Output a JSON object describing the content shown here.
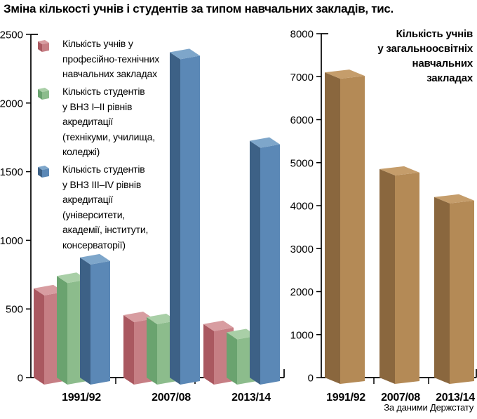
{
  "title": "Зміна кількості учнів і студентів за типом навчальних закладів, тис.",
  "source_note": "За даними Держстату",
  "palette": {
    "vocational": {
      "front": "#c67e84",
      "side": "#aa5860",
      "top": "#d89da1"
    },
    "college": {
      "front": "#8cbc8c",
      "side": "#6aa36f",
      "top": "#a9cfa7"
    },
    "university": {
      "front": "#5b88b6",
      "side": "#3d6186",
      "top": "#7ea6ca"
    },
    "school": {
      "front": "#b48a56",
      "side": "#8a673e",
      "top": "#c59d6b"
    }
  },
  "chart_data": [
    {
      "type": "bar",
      "axis_slot": "left",
      "title": "",
      "unit": "тис.",
      "categories": [
        "1991/92",
        "2007/08",
        "2013/14"
      ],
      "series": [
        {
          "name": "Кількість учнів у професійно-технічних навчальних закладах",
          "palette": "vocational",
          "values": [
            650,
            455,
            390
          ]
        },
        {
          "name": "Кількість студентів у ВНЗ І–ІІ рівнів акредитації (технікуми, училища, коледжі)",
          "palette": "college",
          "values": [
            740,
            440,
            330
          ]
        },
        {
          "name": "Кількість студентів у ВНЗ ІІІ–ІV рівнів акредитації (університети, академії, інститути, консерваторії)",
          "palette": "university",
          "values": [
            875,
            2370,
            1725
          ]
        }
      ],
      "ylim": [
        0,
        2500
      ],
      "yticks": [
        0,
        500,
        1000,
        1500,
        2000,
        2500
      ],
      "grid": false,
      "legend": {
        "position": "top-left-overlay",
        "items": [
          {
            "palette": "vocational",
            "lines": [
              "Кількість учнів у",
              "професійно-технічних",
              "навчальних закладах"
            ]
          },
          {
            "palette": "college",
            "lines": [
              "Кількість студентів",
              "у ВНЗ І–ІІ рівнів",
              "акредитації",
              "(технікуми, училища,",
              "коледжі)"
            ]
          },
          {
            "palette": "university",
            "lines": [
              "Кількість студентів",
              "у ВНЗ ІІІ–ІV рівнів",
              "акредитації",
              "(університети,",
              "академії, інститути,",
              "консерваторії)"
            ]
          }
        ]
      }
    },
    {
      "type": "bar",
      "axis_slot": "right",
      "title": "Кількість учнів у загальноосвітніх навчальних закладах",
      "title_lines": [
        "Кількість учнів",
        "у загальноосвітніх",
        "навчальних",
        "закладах"
      ],
      "categories": [
        "1991/92",
        "2007/08",
        "2013/14"
      ],
      "series": [
        {
          "name": "Кількість учнів у загальноосвітніх навчальних закладах",
          "palette": "school",
          "values": [
            7100,
            4850,
            4200
          ]
        }
      ],
      "ylim": [
        0,
        8000
      ],
      "yticks": [
        0,
        1000,
        2000,
        3000,
        4000,
        5000,
        6000,
        7000,
        8000
      ],
      "grid": false
    }
  ]
}
